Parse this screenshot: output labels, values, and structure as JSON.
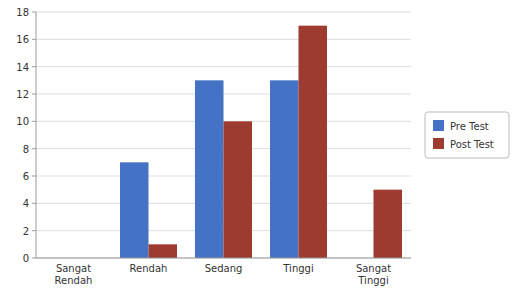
{
  "chart_data": {
    "type": "bar",
    "categories": [
      "Sangat\nRendah",
      "Rendah",
      "Sedang",
      "Tinggi",
      "Sangat\nTinggi"
    ],
    "series": [
      {
        "name": "Pre Test",
        "color": "#4472C4",
        "values": [
          0,
          7,
          13,
          13,
          0
        ]
      },
      {
        "name": "Post Test",
        "color": "#9E3B31",
        "values": [
          0,
          1,
          10,
          17,
          5
        ]
      }
    ],
    "ylim": [
      0,
      18
    ],
    "yticks": [
      0,
      2,
      4,
      6,
      8,
      10,
      12,
      14,
      16,
      18
    ],
    "grid": true,
    "legend": "right"
  }
}
